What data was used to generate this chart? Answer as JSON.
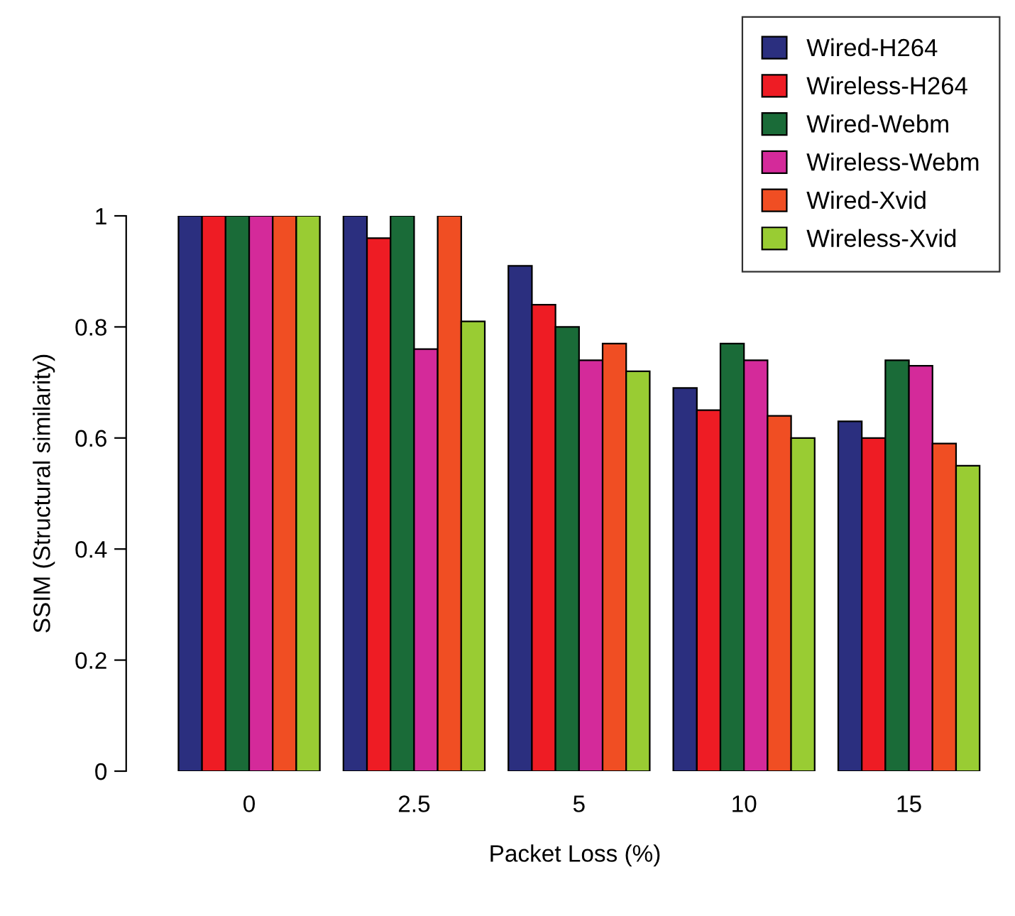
{
  "chart_data": {
    "type": "bar",
    "xlabel": "Packet Loss (%)",
    "ylabel": "SSIM (Structural similarity)",
    "categories": [
      "0",
      "2.5",
      "5",
      "10",
      "15"
    ],
    "series": [
      {
        "name": "Wired-H264",
        "color": "#2b2f7f",
        "values": [
          1,
          1,
          0.91,
          0.69,
          0.63
        ]
      },
      {
        "name": "Wireless-H264",
        "color": "#ee1c24",
        "values": [
          1,
          0.96,
          0.84,
          0.65,
          0.6
        ]
      },
      {
        "name": "Wired-Webm",
        "color": "#1a6b38",
        "values": [
          1,
          1,
          0.8,
          0.77,
          0.74
        ]
      },
      {
        "name": "Wireless-Webm",
        "color": "#d42a9a",
        "values": [
          1,
          0.76,
          0.74,
          0.74,
          0.73
        ]
      },
      {
        "name": "Wired-Xvid",
        "color": "#f04e23",
        "values": [
          1,
          1,
          0.77,
          0.64,
          0.59
        ]
      },
      {
        "name": "Wireless-Xvid",
        "color": "#99cc33",
        "values": [
          1,
          0.81,
          0.72,
          0.6,
          0.55
        ]
      }
    ],
    "ylim": [
      0,
      1
    ],
    "yticks": [
      0,
      0.2,
      0.4,
      0.6,
      0.8,
      1
    ],
    "grid": false,
    "legend": "top right"
  }
}
